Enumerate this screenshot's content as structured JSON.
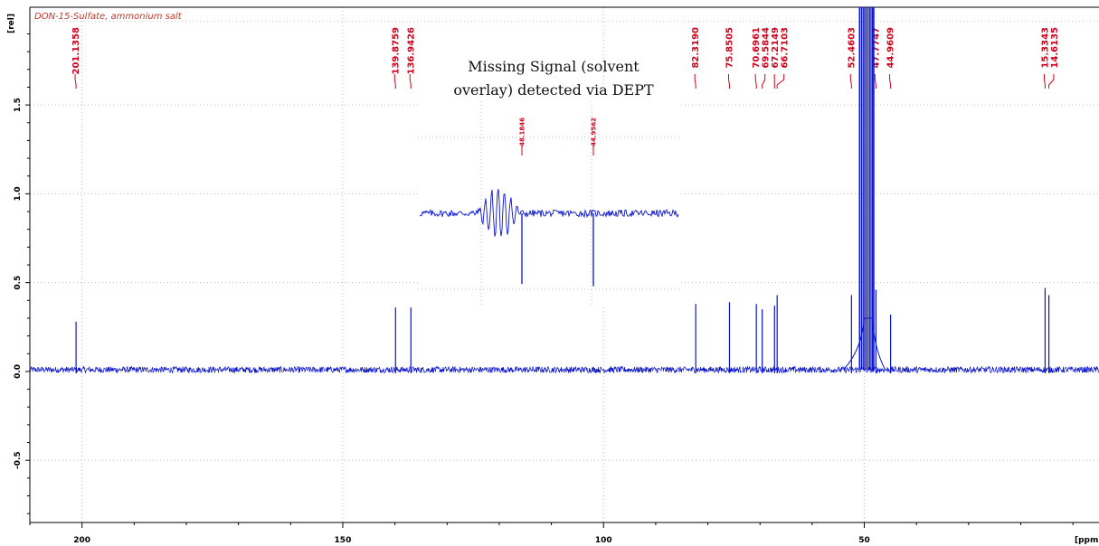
{
  "chart_data": {
    "type": "line",
    "title": "DON-15-Sulfate, ammonium salt",
    "ylabel": "[rel]",
    "xlabel": "[ppm]",
    "xlim": [
      210,
      5
    ],
    "ylim": [
      -0.85,
      2.05
    ],
    "x_ticks": [
      "200",
      "150",
      "100",
      "50"
    ],
    "x_tick_values": [
      200,
      150,
      100,
      50
    ],
    "y_ticks": [
      "-0.5",
      "0.0",
      "0.5",
      "1.0",
      "1.5"
    ],
    "y_tick_values": [
      -0.5,
      0.0,
      0.5,
      1.0,
      1.5
    ],
    "grid": true,
    "line_color": "#0a14c8",
    "label_color": "#d0021b",
    "baseline": 0.01,
    "peaks": [
      {
        "label": "201.1358",
        "x": 201.14,
        "height": 0.28
      },
      {
        "label": "139.8759",
        "x": 139.88,
        "height": 0.36
      },
      {
        "label": "136.9426",
        "x": 136.94,
        "height": 0.36
      },
      {
        "label": "82.3190",
        "x": 82.32,
        "height": 0.38
      },
      {
        "label": "75.8505",
        "x": 75.85,
        "height": 0.39
      },
      {
        "label": "70.6961",
        "x": 70.7,
        "height": 0.38
      },
      {
        "label": "69.5844",
        "x": 69.58,
        "height": 0.35
      },
      {
        "label": "67.2149",
        "x": 67.21,
        "height": 0.37
      },
      {
        "label": "66.7103",
        "x": 66.71,
        "height": 0.43
      },
      {
        "label": "52.4603",
        "x": 52.46,
        "height": 0.43
      },
      {
        "label": "47.7747",
        "x": 47.77,
        "height": 0.46
      },
      {
        "label": "44.9609",
        "x": 44.96,
        "height": 0.32
      },
      {
        "label": "15.3343",
        "x": 15.33,
        "height": 0.47
      },
      {
        "label": "14.6135",
        "x": 14.61,
        "height": 0.43
      }
    ],
    "solvent_peak": {
      "x": 49.5,
      "xs": [
        50.9,
        50.5,
        50.1,
        49.7,
        49.3,
        48.9,
        48.5,
        48.2
      ]
    },
    "inset": {
      "annotation_lines": [
        "Missing Signal (solvent",
        "overlay) detected via DEPT"
      ],
      "peaks": [
        {
          "label": "48.1846",
          "x": 48.18,
          "height": -0.6
        },
        {
          "label": "44.9562",
          "x": 44.96,
          "height": -0.62
        }
      ]
    }
  }
}
